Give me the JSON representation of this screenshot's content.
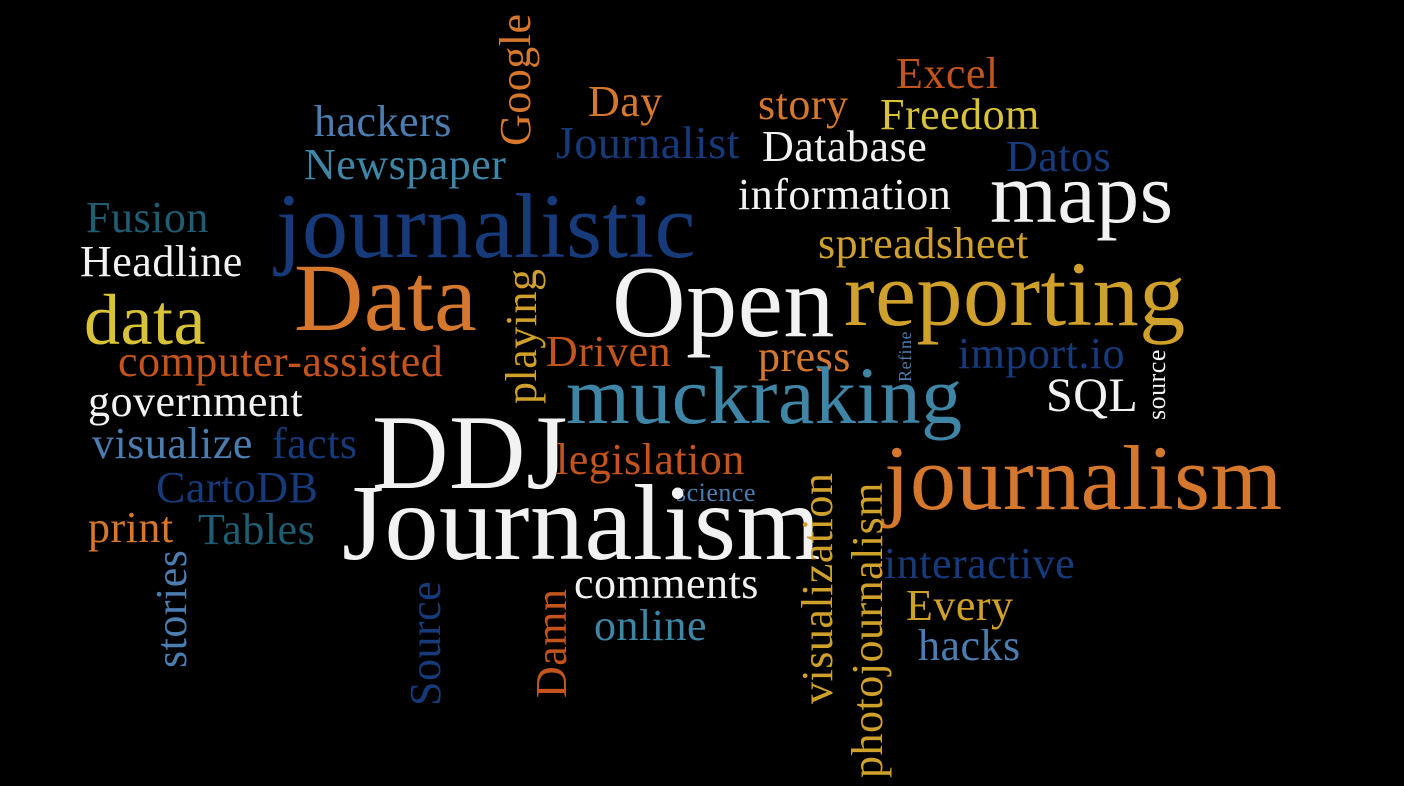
{
  "palette": {
    "background": "#000000",
    "white": "#f2f2f2",
    "orange": "#d5782e",
    "gold": "#d0a02c",
    "yellow": "#d8c23a",
    "rust": "#c4541e",
    "navy": "#163a7a",
    "blue": "#4b7db0",
    "steel": "#3f85a6",
    "teal": "#1f5d73"
  },
  "words": [
    {
      "key": "journalistic",
      "text": "journalistic"
    },
    {
      "key": "hackers",
      "text": "hackers"
    },
    {
      "key": "newspaper",
      "text": "Newspaper"
    },
    {
      "key": "google",
      "text": "Google"
    },
    {
      "key": "day",
      "text": "Day"
    },
    {
      "key": "journalist",
      "text": "Journalist"
    },
    {
      "key": "story",
      "text": "story"
    },
    {
      "key": "excel",
      "text": "Excel"
    },
    {
      "key": "freedom",
      "text": "Freedom"
    },
    {
      "key": "database",
      "text": "Database"
    },
    {
      "key": "datos",
      "text": "Datos"
    },
    {
      "key": "information",
      "text": "information"
    },
    {
      "key": "maps",
      "text": "maps"
    },
    {
      "key": "fusion",
      "text": "Fusion"
    },
    {
      "key": "headline",
      "text": "Headline"
    },
    {
      "key": "spreadsheet",
      "text": "spreadsheet"
    },
    {
      "key": "data_big",
      "text": "Data"
    },
    {
      "key": "open",
      "text": "Open"
    },
    {
      "key": "reporting",
      "text": "reporting"
    },
    {
      "key": "data_small",
      "text": "data"
    },
    {
      "key": "computer_assisted",
      "text": "computer-assisted"
    },
    {
      "key": "driven",
      "text": "Driven"
    },
    {
      "key": "press",
      "text": "press"
    },
    {
      "key": "import_io",
      "text": "import.io"
    },
    {
      "key": "government",
      "text": "government"
    },
    {
      "key": "muckraking",
      "text": "muckraking"
    },
    {
      "key": "sql",
      "text": "SQL"
    },
    {
      "key": "refine",
      "text": "Refine"
    },
    {
      "key": "source_small",
      "text": "source"
    },
    {
      "key": "playing",
      "text": "playing"
    },
    {
      "key": "visualize",
      "text": "visualize"
    },
    {
      "key": "facts",
      "text": "facts"
    },
    {
      "key": "ddj",
      "text": "DDJ"
    },
    {
      "key": "legislation",
      "text": "legislation"
    },
    {
      "key": "cartodb",
      "text": "CartoDB"
    },
    {
      "key": "science",
      "text": "science"
    },
    {
      "key": "journalism_small",
      "text": "journalism"
    },
    {
      "key": "print",
      "text": "print"
    },
    {
      "key": "tables",
      "text": "Tables"
    },
    {
      "key": "journalism_big",
      "text": "Journalism"
    },
    {
      "key": "visualization",
      "text": "visualization"
    },
    {
      "key": "photojournalism",
      "text": "photojournalism"
    },
    {
      "key": "interactive",
      "text": "interactive"
    },
    {
      "key": "stories",
      "text": "stories"
    },
    {
      "key": "comments",
      "text": "comments"
    },
    {
      "key": "every",
      "text": "Every"
    },
    {
      "key": "damn",
      "text": "Damn"
    },
    {
      "key": "online",
      "text": "online"
    },
    {
      "key": "hacks",
      "text": "hacks"
    },
    {
      "key": "source_big",
      "text": "Source"
    }
  ]
}
